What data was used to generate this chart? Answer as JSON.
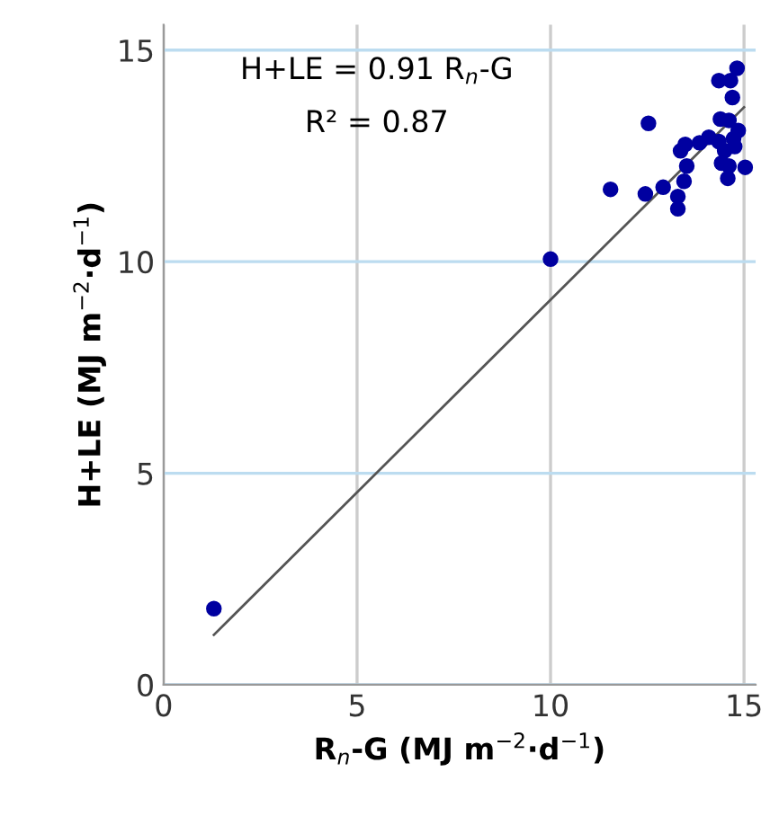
{
  "chart_data": {
    "type": "scatter",
    "xlabel": "R$_{n}$-G (MJ m$^{−2}$·d$^{−1}$)",
    "ylabel": "H+LE (MJ m$^{−2}$·d$^{−1}$)",
    "annotations": [
      "H+LE = 0.91 R$_{n}$-G",
      "R² = 0.87"
    ],
    "xlim": [
      0,
      15.3
    ],
    "ylim": [
      0,
      15.6
    ],
    "xticks": [
      0,
      5,
      10,
      15
    ],
    "yticks": [
      0,
      5,
      10,
      15
    ],
    "grid": true,
    "marker": "circle",
    "series": [
      {
        "color": "#0000a0",
        "x": [
          1.3,
          10.0,
          11.55,
          12.53,
          12.45,
          12.91,
          13.29,
          13.29,
          13.45,
          13.52,
          13.36,
          13.48,
          13.85,
          14.09,
          14.35,
          14.39,
          14.35,
          14.65,
          14.82,
          14.7,
          14.61,
          14.85,
          14.73,
          14.5,
          14.42,
          14.61,
          14.58,
          15.03,
          14.76
        ],
        "values": [
          1.8,
          10.06,
          11.71,
          13.27,
          11.6,
          11.76,
          11.54,
          11.25,
          11.9,
          12.26,
          12.62,
          12.77,
          12.81,
          12.94,
          12.84,
          13.37,
          14.28,
          14.28,
          14.57,
          13.88,
          13.34,
          13.1,
          12.91,
          12.62,
          12.33,
          12.26,
          11.97,
          12.23,
          12.72
        ]
      },
      {
        "type": "line",
        "marker": "none",
        "color": "#555555",
        "x": [
          1.3,
          15.0
        ],
        "values": [
          1.18,
          13.65
        ]
      }
    ]
  }
}
